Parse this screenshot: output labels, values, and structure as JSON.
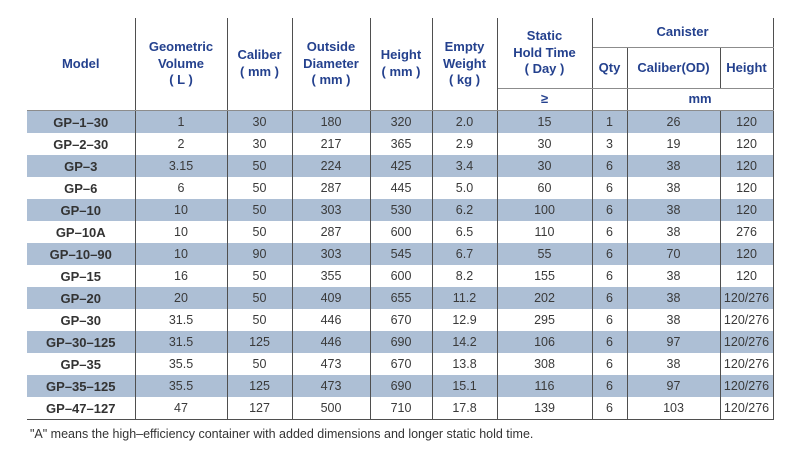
{
  "colors": {
    "header-text": "#24418e",
    "stripe": "#adbfd5",
    "vline": "#4f4f4f",
    "hline": "#8c8c8c",
    "body-text": "#3a3a3a"
  },
  "table": {
    "header": {
      "model": "Model",
      "geometric_volume": "Geometric\nVolume\n( L )",
      "caliber": "Caliber\n( mm )",
      "outside_diameter": "Outside\nDiameter\n( mm )",
      "height": "Height\n( mm )",
      "empty_weight": "Empty\nWeight\n( kg )",
      "static_hold_time": "Static\nHold Time\n( Day )",
      "static_hold_time_condition": "≥",
      "canister": "Canister",
      "canister_qty": "Qty",
      "canister_caliber": "Caliber(OD)",
      "canister_height": "Height",
      "canister_unit": "mm"
    },
    "rows": [
      [
        "GP–1–30",
        "1",
        "30",
        "180",
        "320",
        "2.0",
        "15",
        "1",
        "26",
        "120"
      ],
      [
        "GP–2–30",
        "2",
        "30",
        "217",
        "365",
        "2.9",
        "30",
        "3",
        "19",
        "120"
      ],
      [
        "GP–3",
        "3.15",
        "50",
        "224",
        "425",
        "3.4",
        "30",
        "6",
        "38",
        "120"
      ],
      [
        "GP–6",
        "6",
        "50",
        "287",
        "445",
        "5.0",
        "60",
        "6",
        "38",
        "120"
      ],
      [
        "GP–10",
        "10",
        "50",
        "303",
        "530",
        "6.2",
        "100",
        "6",
        "38",
        "120"
      ],
      [
        "GP–10A",
        "10",
        "50",
        "287",
        "600",
        "6.5",
        "110",
        "6",
        "38",
        "276"
      ],
      [
        "GP–10–90",
        "10",
        "90",
        "303",
        "545",
        "6.7",
        "55",
        "6",
        "70",
        "120"
      ],
      [
        "GP–15",
        "16",
        "50",
        "355",
        "600",
        "8.2",
        "155",
        "6",
        "38",
        "120"
      ],
      [
        "GP–20",
        "20",
        "50",
        "409",
        "655",
        "11.2",
        "202",
        "6",
        "38",
        "120/276"
      ],
      [
        "GP–30",
        "31.5",
        "50",
        "446",
        "670",
        "12.9",
        "295",
        "6",
        "38",
        "120/276"
      ],
      [
        "GP–30–125",
        "31.5",
        "125",
        "446",
        "690",
        "14.2",
        "106",
        "6",
        "97",
        "120/276"
      ],
      [
        "GP–35",
        "35.5",
        "50",
        "473",
        "670",
        "13.8",
        "308",
        "6",
        "38",
        "120/276"
      ],
      [
        "GP–35–125",
        "35.5",
        "125",
        "473",
        "690",
        "15.1",
        "116",
        "6",
        "97",
        "120/276"
      ],
      [
        "GP–47–127",
        "47",
        "127",
        "500",
        "710",
        "17.8",
        "139",
        "6",
        "103",
        "120/276"
      ]
    ]
  },
  "footnote": "\"A\" means the high–efficiency container with added dimensions and longer static hold time."
}
